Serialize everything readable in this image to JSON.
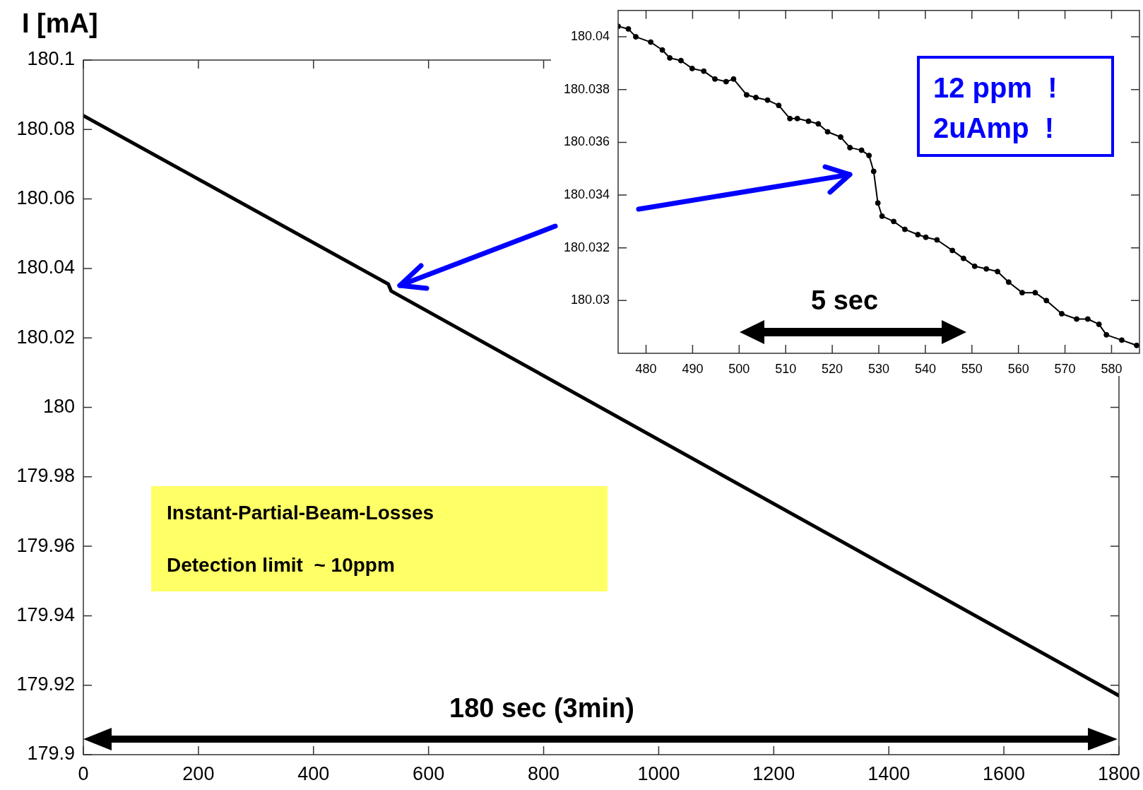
{
  "chart_data": [
    {
      "type": "line",
      "ylabel": "I [mA]",
      "xlim": [
        0,
        1800
      ],
      "xticks": [
        0,
        200,
        400,
        600,
        800,
        1000,
        1200,
        1400,
        1600,
        1800
      ],
      "ylim": [
        179.9,
        180.1
      ],
      "yticks": [
        179.9,
        179.92,
        179.94,
        179.96,
        179.98,
        180,
        180.02,
        180.04,
        180.06,
        180.08,
        180.1
      ],
      "series": [
        {
          "color": "#000000",
          "x": [
            0,
            530,
            535,
            1800
          ],
          "values": [
            180.084,
            180.0355,
            180.0335,
            179.917
          ]
        }
      ],
      "annotations": [
        "Instant-Partial-Beam-Losses",
        "Detection limit  ~ 10ppm",
        "180 sec (3min)"
      ]
    },
    {
      "type": "line",
      "marker": "circle",
      "xlim": [
        474,
        586
      ],
      "xticks": [
        480,
        490,
        500,
        510,
        520,
        530,
        540,
        550,
        560,
        570,
        580
      ],
      "ylim": [
        180.028,
        180.041
      ],
      "yticks": [
        180.03,
        180.032,
        180.034,
        180.036,
        180.038,
        180.04
      ],
      "series": [
        {
          "color": "#000000",
          "x": [
            474,
            476.2,
            477.8,
            481,
            483.5,
            485.1,
            487.5,
            489.9,
            492.4,
            494.8,
            497.2,
            498.8,
            501.6,
            503.6,
            506.1,
            508.5,
            510.9,
            512.5,
            514.9,
            517,
            519,
            521.8,
            523.8,
            526.3,
            527.9,
            528.9,
            529.8,
            530.7,
            533.2,
            535.6,
            538.4,
            540.1,
            542.5,
            545.8,
            548.2,
            550.6,
            553.1,
            555.5,
            557.9,
            560.8,
            563.6,
            566,
            569.3,
            572.5,
            574.9,
            577.3,
            578.9,
            582.2,
            585.4
          ],
          "values": [
            180.0404,
            180.0403,
            180.04,
            180.0398,
            180.0395,
            180.0392,
            180.0391,
            180.0388,
            180.0387,
            180.0384,
            180.0383,
            180.0384,
            180.0378,
            180.0377,
            180.0376,
            180.0374,
            180.0369,
            180.0369,
            180.0368,
            180.0367,
            180.0364,
            180.0362,
            180.0358,
            180.0357,
            180.0355,
            180.0349,
            180.0337,
            180.0332,
            180.033,
            180.0327,
            180.0325,
            180.0324,
            180.0323,
            180.0319,
            180.0316,
            180.0313,
            180.0312,
            180.0311,
            180.0307,
            180.0303,
            180.0303,
            180.03,
            180.0295,
            180.0293,
            180.0293,
            180.0291,
            180.0287,
            180.0285,
            180.0283
          ]
        }
      ],
      "annotations": [
        "12 ppm  !",
        "2uAmp  !",
        "5 sec"
      ]
    }
  ]
}
